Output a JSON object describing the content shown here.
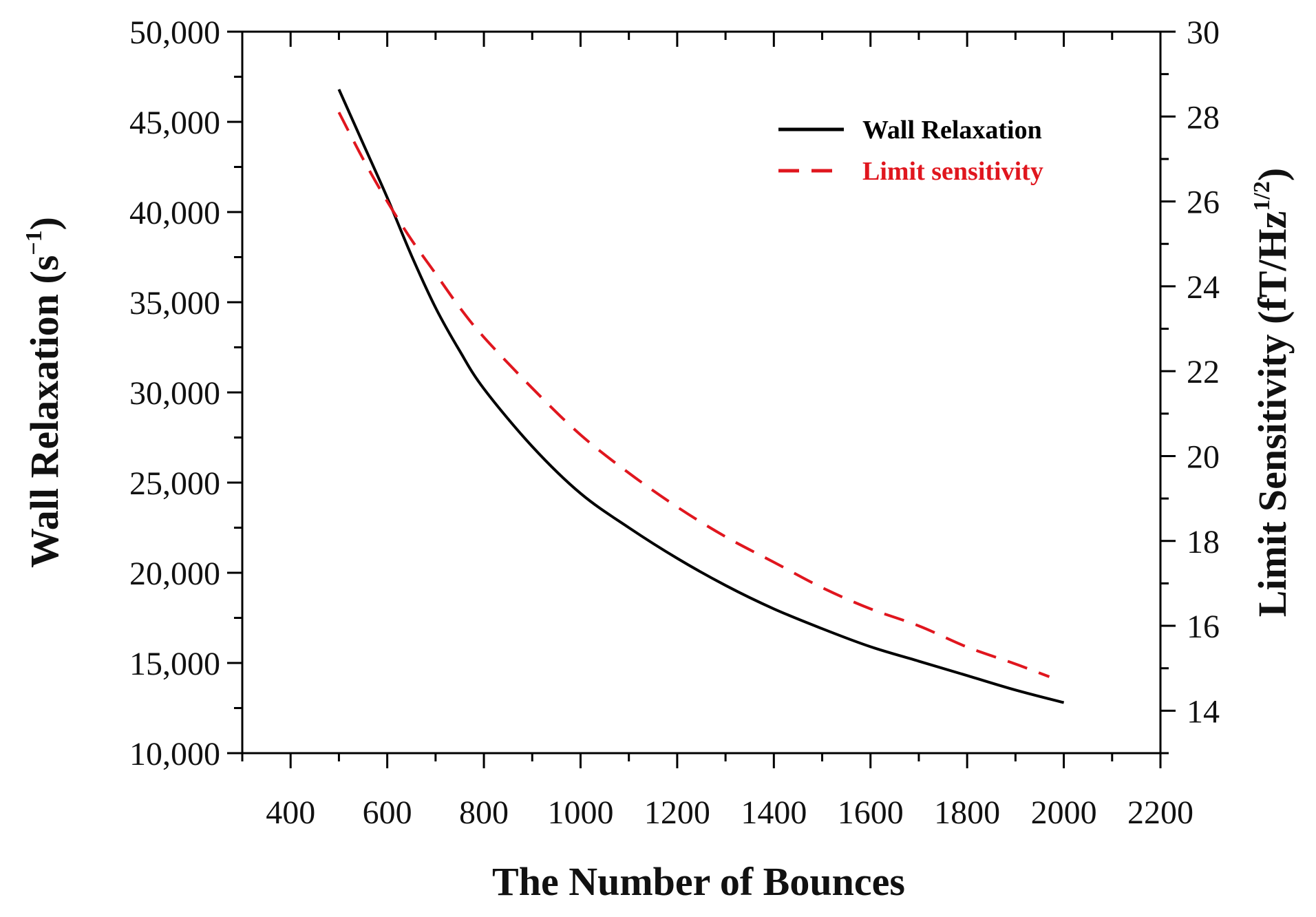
{
  "chart_data": {
    "type": "line",
    "xlabel": "The Number of Bounces",
    "ylabel": {
      "text": "Wall Relaxation (s",
      "sup": "−1",
      "close": ")"
    },
    "y2label": {
      "text": "Limit Sensitivity (fT/Hz",
      "sup": "1/2",
      "close": ")"
    },
    "xlim": [
      300,
      2200
    ],
    "ylim": [
      10000,
      50000
    ],
    "y2lim": [
      13,
      30
    ],
    "xticks": [
      400,
      600,
      800,
      1000,
      1200,
      1400,
      1600,
      1800,
      2000,
      2200
    ],
    "yticks": [
      10000,
      15000,
      20000,
      25000,
      30000,
      35000,
      40000,
      45000,
      50000
    ],
    "ytick_labels": [
      "10,000",
      "15,000",
      "20,000",
      "25,000",
      "30,000",
      "35,000",
      "40,000",
      "45,000",
      "50,000"
    ],
    "y2ticks": [
      14,
      16,
      18,
      20,
      22,
      24,
      26,
      28,
      30
    ],
    "legend_position": "top-right",
    "series": [
      {
        "name": "Wall Relaxation",
        "axis": "left",
        "color": "#000000",
        "style": "solid",
        "x": [
          500,
          550,
          600,
          650,
          700,
          750,
          800,
          900,
          1000,
          1100,
          1200,
          1300,
          1400,
          1500,
          1600,
          1700,
          1800,
          1900,
          2000
        ],
        "values": [
          46800,
          43800,
          40800,
          37600,
          34700,
          32300,
          30200,
          27000,
          24400,
          22500,
          20800,
          19300,
          18000,
          16900,
          15900,
          15100,
          14300,
          13500,
          12800
        ]
      },
      {
        "name": "Limit sensitivity",
        "axis": "right",
        "color": "#e0161e",
        "style": "dashed",
        "x": [
          500,
          550,
          600,
          650,
          700,
          750,
          800,
          900,
          1000,
          1100,
          1200,
          1300,
          1400,
          1500,
          1600,
          1700,
          1800,
          1900,
          1970
        ],
        "values": [
          28.1,
          27.0,
          26.0,
          25.1,
          24.3,
          23.5,
          22.8,
          21.6,
          20.5,
          19.6,
          18.8,
          18.1,
          17.5,
          16.9,
          16.4,
          16.0,
          15.5,
          15.1,
          14.8
        ]
      }
    ]
  }
}
